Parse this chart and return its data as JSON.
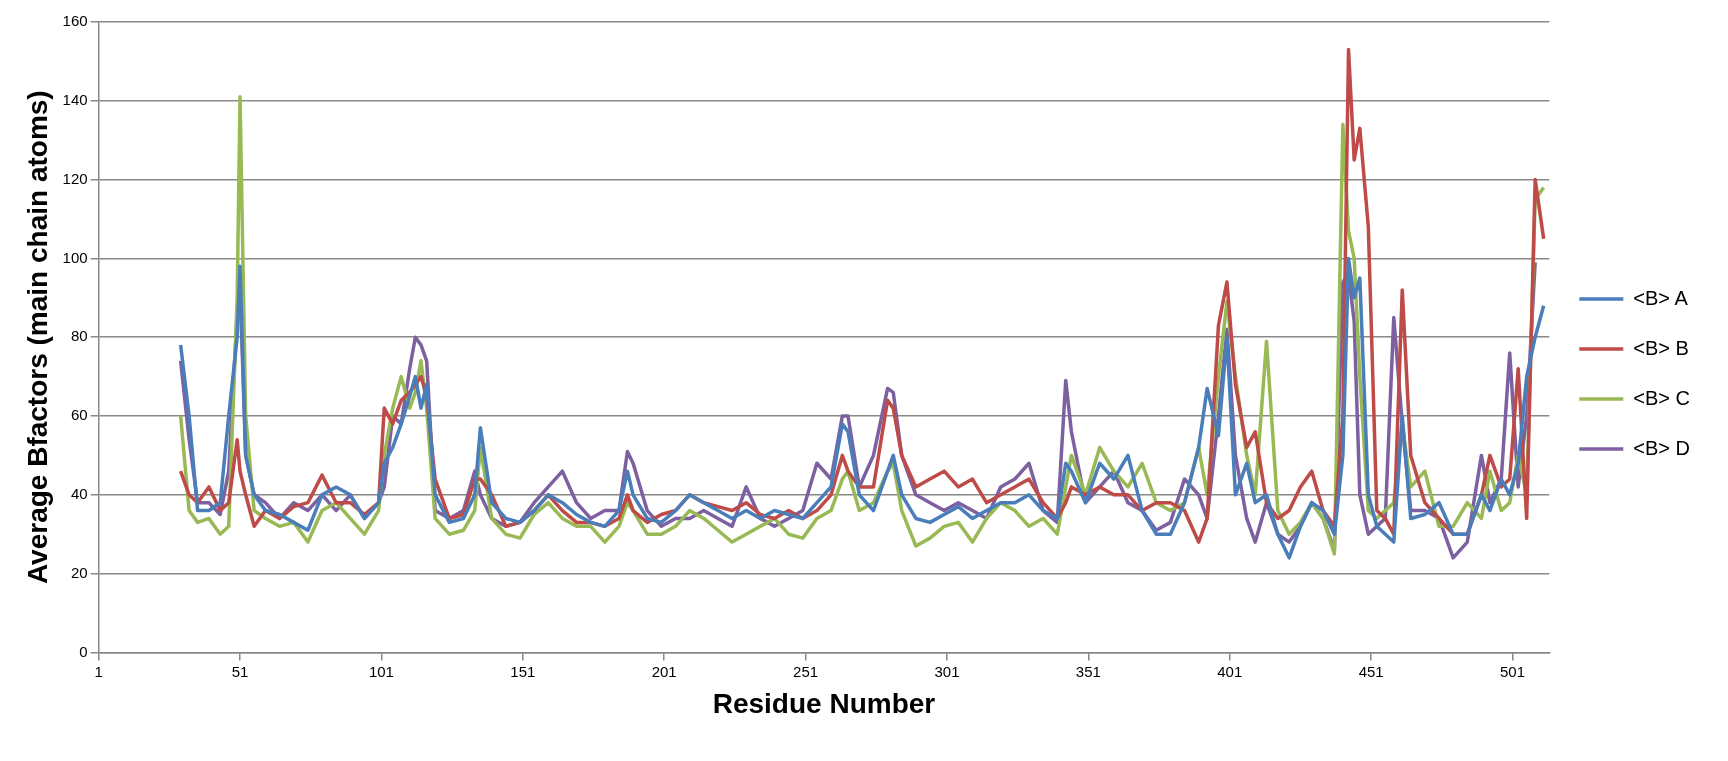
{
  "chart_data": {
    "type": "line",
    "xlabel": "Residue Number",
    "ylabel": "Average Bfactors (main chain atoms)",
    "x": [
      30,
      33,
      36,
      40,
      44,
      47,
      50,
      51,
      53,
      56,
      60,
      65,
      70,
      75,
      80,
      85,
      90,
      95,
      100,
      102,
      105,
      108,
      111,
      113,
      115,
      117,
      120,
      125,
      130,
      134,
      136,
      140,
      145,
      150,
      155,
      160,
      165,
      170,
      175,
      180,
      185,
      188,
      190,
      195,
      200,
      205,
      210,
      215,
      220,
      225,
      230,
      235,
      240,
      245,
      250,
      255,
      260,
      264,
      266,
      270,
      275,
      280,
      282,
      285,
      290,
      295,
      300,
      305,
      310,
      315,
      320,
      325,
      330,
      335,
      340,
      343,
      345,
      350,
      355,
      360,
      365,
      370,
      375,
      380,
      385,
      390,
      393,
      397,
      400,
      403,
      407,
      410,
      414,
      418,
      422,
      426,
      430,
      434,
      438,
      441,
      443,
      445,
      447,
      450,
      453,
      456,
      459,
      462,
      465,
      470,
      475,
      480,
      485,
      490,
      493,
      497,
      500,
      503,
      506,
      509,
      512
    ],
    "xlim": [
      1,
      514
    ],
    "xticks": [
      1,
      51,
      101,
      151,
      201,
      251,
      301,
      351,
      401,
      451,
      501
    ],
    "ylim": [
      0,
      160
    ],
    "yticks": [
      0,
      20,
      40,
      60,
      80,
      100,
      120,
      140,
      160
    ],
    "grid": "y",
    "legend": "right",
    "line_style": "solid",
    "marker": "none",
    "series": [
      {
        "name": "<B> A",
        "color": "#4a7ebb",
        "values": [
          78,
          60,
          36,
          36,
          38,
          60,
          80,
          98,
          50,
          40,
          36,
          35,
          33,
          31,
          40,
          42,
          40,
          34,
          38,
          48,
          52,
          58,
          65,
          70,
          62,
          68,
          40,
          33,
          34,
          40,
          57,
          38,
          34,
          33,
          36,
          40,
          38,
          35,
          33,
          32,
          36,
          46,
          40,
          34,
          33,
          36,
          40,
          38,
          36,
          34,
          36,
          34,
          36,
          35,
          34,
          38,
          42,
          58,
          56,
          40,
          36,
          46,
          50,
          40,
          34,
          33,
          35,
          37,
          34,
          36,
          38,
          38,
          40,
          36,
          34,
          48,
          46,
          38,
          48,
          44,
          50,
          36,
          30,
          30,
          38,
          52,
          67,
          55,
          80,
          40,
          48,
          38,
          40,
          30,
          24,
          32,
          38,
          36,
          30,
          50,
          100,
          90,
          95,
          40,
          32,
          30,
          28,
          60,
          34,
          35,
          38,
          30,
          30,
          40,
          36,
          44,
          40,
          48,
          70,
          80,
          88
        ]
      },
      {
        "name": "<B> B",
        "color": "#be4b48",
        "values": [
          46,
          40,
          38,
          42,
          36,
          38,
          54,
          46,
          40,
          32,
          36,
          34,
          37,
          38,
          45,
          38,
          38,
          35,
          38,
          62,
          58,
          64,
          66,
          68,
          70,
          65,
          44,
          34,
          35,
          44,
          44,
          40,
          32,
          33,
          36,
          40,
          36,
          33,
          33,
          32,
          34,
          40,
          36,
          33,
          35,
          36,
          40,
          38,
          37,
          36,
          38,
          35,
          34,
          36,
          34,
          36,
          40,
          50,
          46,
          42,
          42,
          64,
          62,
          50,
          42,
          44,
          46,
          42,
          44,
          38,
          40,
          42,
          44,
          38,
          34,
          38,
          42,
          40,
          42,
          40,
          40,
          36,
          38,
          38,
          36,
          28,
          34,
          83,
          94,
          68,
          52,
          56,
          38,
          34,
          36,
          42,
          46,
          36,
          32,
          60,
          153,
          125,
          133,
          108,
          36,
          34,
          30,
          92,
          50,
          38,
          34,
          30,
          30,
          40,
          50,
          42,
          44,
          72,
          34,
          120,
          105
        ]
      },
      {
        "name": "<B> C",
        "color": "#98b954",
        "values": [
          60,
          36,
          33,
          34,
          30,
          32,
          90,
          141,
          60,
          36,
          34,
          32,
          33,
          28,
          36,
          38,
          34,
          30,
          36,
          50,
          62,
          70,
          62,
          66,
          74,
          62,
          34,
          30,
          31,
          36,
          52,
          34,
          30,
          29,
          35,
          38,
          34,
          32,
          32,
          28,
          32,
          38,
          36,
          30,
          30,
          32,
          36,
          34,
          31,
          28,
          30,
          32,
          34,
          30,
          29,
          34,
          36,
          44,
          46,
          36,
          38,
          46,
          48,
          36,
          27,
          29,
          32,
          33,
          28,
          34,
          38,
          36,
          32,
          34,
          30,
          42,
          50,
          40,
          52,
          46,
          42,
          48,
          38,
          36,
          38,
          52,
          40,
          70,
          89,
          70,
          50,
          40,
          79,
          36,
          30,
          33,
          38,
          34,
          25,
          134,
          107,
          100,
          70,
          36,
          34,
          36,
          38,
          58,
          42,
          46,
          32,
          32,
          38,
          34,
          46,
          36,
          38,
          50,
          40,
          115,
          118
        ]
      },
      {
        "name": "<B> D",
        "color": "#7d60a0",
        "values": [
          74,
          54,
          38,
          38,
          35,
          46,
          86,
          93,
          50,
          40,
          38,
          34,
          38,
          36,
          40,
          36,
          40,
          34,
          38,
          42,
          60,
          58,
          72,
          80,
          78,
          74,
          36,
          34,
          36,
          46,
          40,
          34,
          32,
          33,
          38,
          42,
          46,
          38,
          34,
          36,
          36,
          51,
          48,
          36,
          32,
          34,
          34,
          36,
          34,
          32,
          42,
          34,
          32,
          34,
          36,
          48,
          44,
          60,
          60,
          42,
          50,
          67,
          66,
          50,
          40,
          38,
          36,
          38,
          36,
          34,
          42,
          44,
          48,
          36,
          33,
          69,
          56,
          38,
          42,
          46,
          38,
          36,
          31,
          33,
          44,
          40,
          34,
          60,
          82,
          50,
          34,
          28,
          38,
          30,
          28,
          32,
          38,
          34,
          26,
          94,
          96,
          84,
          40,
          30,
          32,
          34,
          85,
          58,
          36,
          36,
          34,
          24,
          28,
          50,
          38,
          44,
          76,
          42,
          60,
          99,
          null
        ]
      }
    ]
  }
}
